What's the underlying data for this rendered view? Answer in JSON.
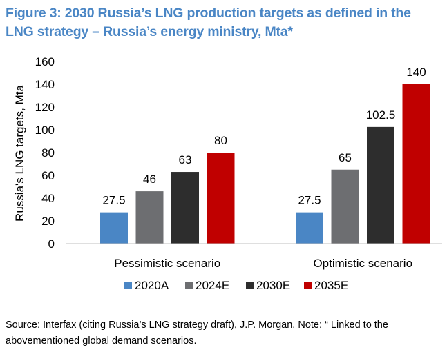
{
  "figure": {
    "title": "Figure 3: 2030 Russia’s LNG production targets as defined in the LNG strategy – Russia’s energy ministry, Mta*",
    "source_note": "Source: Interfax (citing Russia’s LNG strategy draft), J.P. Morgan. Note: “ Linked to the abovementioned global demand scenarios."
  },
  "chart_data": {
    "type": "bar",
    "title": "Figure 3: 2030 Russia’s LNG production targets as defined in the LNG strategy – Russia’s energy ministry, Mta*",
    "xlabel": "",
    "ylabel": "Russia's LNG targets, Mta",
    "ylim": [
      0,
      160
    ],
    "yticks": [
      0,
      20,
      40,
      60,
      80,
      100,
      120,
      140,
      160
    ],
    "ytick_labels": [
      "0",
      "20",
      "40",
      "60",
      "80",
      "100",
      "120",
      "140",
      "160"
    ],
    "grid": false,
    "legend_position": "bottom",
    "categories": [
      "Pessimistic scenario",
      "Optimistic scenario"
    ],
    "series": [
      {
        "name": "2020A",
        "values": [
          27.5,
          27.5
        ],
        "labels": [
          "27.5",
          "27.5"
        ],
        "color": "#4a86c5"
      },
      {
        "name": "2024E",
        "values": [
          46,
          65
        ],
        "labels": [
          "46",
          "65"
        ],
        "color": "#6d6e71"
      },
      {
        "name": "2030E",
        "values": [
          63,
          102.5
        ],
        "labels": [
          "63",
          "102.5"
        ],
        "color": "#2d2d2d"
      },
      {
        "name": "2035E",
        "values": [
          80,
          140
        ],
        "labels": [
          "80",
          "140"
        ],
        "color": "#c00000"
      }
    ]
  }
}
